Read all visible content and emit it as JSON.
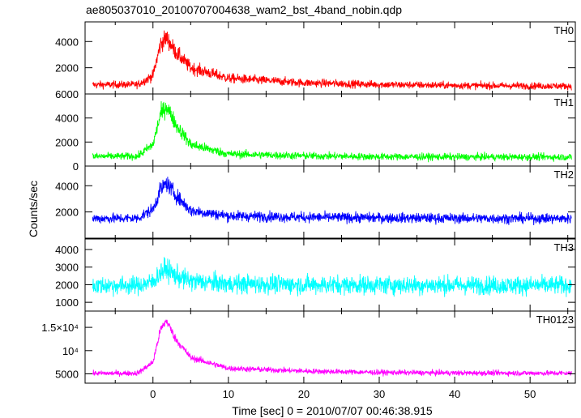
{
  "chart_data": {
    "type": "line",
    "title": "ae805037010_20100707004638_wam2_bst_4band_nobin.qdp",
    "xlabel": "Time [sec] 0 = 2010/07/07 00:46:38.915",
    "ylabel": "Counts/sec",
    "xlim": [
      -9,
      56
    ],
    "x_ticks": [
      0,
      10,
      20,
      30,
      40,
      50
    ],
    "grid": false,
    "panels": [
      {
        "name": "TH0",
        "color": "#ff0000",
        "ylim": [
          0,
          5500
        ],
        "y_ticks": [
          0,
          2000,
          4000
        ],
        "y_tick_labels": [
          "",
          "2000",
          "4000"
        ],
        "series_approx": {
          "x": [
            -8,
            -2,
            0,
            1,
            1.8,
            3,
            5,
            10,
            20,
            30,
            40,
            55
          ],
          "y": [
            700,
            720,
            1400,
            3800,
            4300,
            3200,
            2000,
            1200,
            850,
            720,
            650,
            600
          ],
          "noise": 280
        }
      },
      {
        "name": "TH1",
        "color": "#00ff00",
        "ylim": [
          0,
          6000
        ],
        "y_ticks": [
          0,
          2000,
          4000,
          6000
        ],
        "y_tick_labels": [
          "0",
          "2000",
          "4000",
          "6000"
        ],
        "series_approx": {
          "x": [
            -8,
            -2,
            0,
            1,
            1.8,
            3,
            5,
            10,
            20,
            30,
            40,
            55
          ],
          "y": [
            800,
            820,
            1800,
            4300,
            5000,
            3500,
            1800,
            1000,
            850,
            780,
            760,
            750
          ],
          "noise": 300
        }
      },
      {
        "name": "TH2",
        "color": "#0000ff",
        "ylim": [
          0,
          5500
        ],
        "y_ticks": [
          2000,
          4000
        ],
        "y_tick_labels": [
          "2000",
          "4000"
        ],
        "series_approx": {
          "x": [
            -8,
            -2,
            0,
            1,
            1.8,
            3,
            5,
            10,
            20,
            30,
            40,
            55
          ],
          "y": [
            1500,
            1520,
            2200,
            3700,
            4200,
            3300,
            2100,
            1700,
            1600,
            1550,
            1520,
            1500
          ],
          "noise": 380
        }
      },
      {
        "name": "TH3",
        "color": "#00ffff",
        "ylim": [
          500,
          4600
        ],
        "y_ticks": [
          1000,
          2000,
          3000,
          4000
        ],
        "y_tick_labels": [
          "1000",
          "2000",
          "3000",
          "4000"
        ],
        "series_approx": {
          "x": [
            -8,
            -2,
            0,
            1,
            1.8,
            3,
            5,
            10,
            20,
            30,
            40,
            55
          ],
          "y": [
            1950,
            1960,
            2150,
            2700,
            2900,
            2500,
            2200,
            2050,
            2000,
            1980,
            1970,
            1960
          ],
          "noise": 520
        }
      },
      {
        "name": "TH0123",
        "color": "#ff00ff",
        "ylim": [
          3000,
          18500
        ],
        "y_ticks": [
          5000,
          10000,
          15000
        ],
        "y_tick_labels": [
          "5000",
          "10⁴",
          "1.5×10⁴"
        ],
        "series_approx": {
          "x": [
            -8,
            -2,
            0,
            1,
            1.8,
            3,
            5,
            10,
            20,
            30,
            40,
            55
          ],
          "y": [
            5100,
            5150,
            7500,
            14500,
            16500,
            12500,
            8500,
            6200,
            5600,
            5300,
            5200,
            5150
          ],
          "noise": 550
        }
      }
    ]
  }
}
